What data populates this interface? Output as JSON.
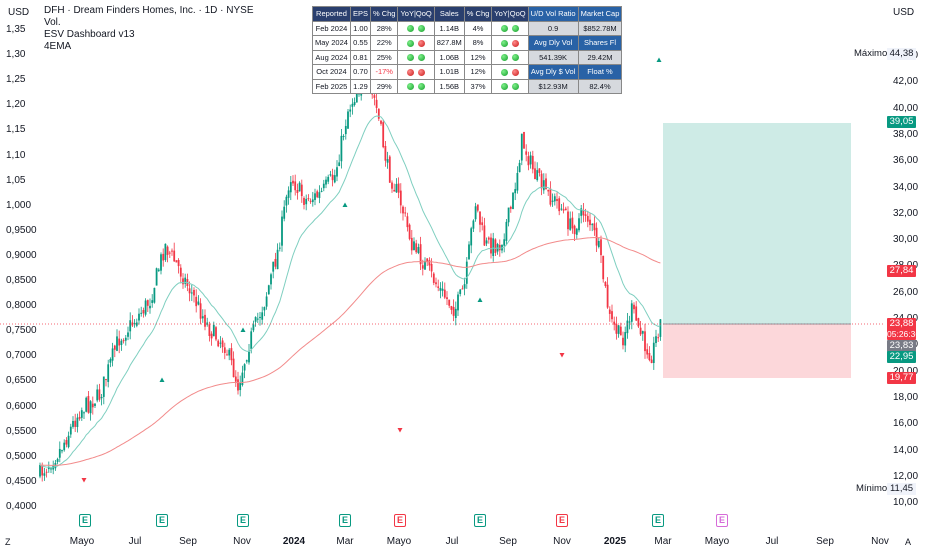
{
  "legend": {
    "title": "DFH · Dream Finders Homes, Inc. · 1D · NYSE",
    "line2": "Vol.",
    "line3": "ESV Dashboard v13",
    "line4": "4EMA"
  },
  "left_axis": {
    "unit": "USD",
    "ticks": [
      "1,35",
      "1,30",
      "1,25",
      "1,20",
      "1,15",
      "1,10",
      "1,05",
      "1,000",
      "0,9500",
      "0,9000",
      "0,8500",
      "0,8000",
      "0,7500",
      "0,7000",
      "0,6500",
      "0,6000",
      "0,5500",
      "0,5000",
      "0,4500",
      "0,4000"
    ]
  },
  "right_axis": {
    "unit": "USD",
    "ticks": [
      "44,00",
      "42,00",
      "40,00",
      "38,00",
      "36,00",
      "34,00",
      "32,00",
      "30,00",
      "28,00",
      "26,00",
      "24,00",
      "22,00",
      "20,00",
      "18,00",
      "16,00",
      "14,00",
      "12,00",
      "10,00"
    ],
    "max_label": "Máximo",
    "max_value": "44,38",
    "min_label": "Mínimo",
    "min_value": "11,45",
    "tags": {
      "target": "39,05",
      "ema": "27,84",
      "last": "23,88",
      "countdown": "05:26:36",
      "prev": "23,83",
      "entry": "22,95",
      "stop": "19,77"
    },
    "colors": {
      "green": "#089981",
      "red": "#f23645",
      "grey": "#787b86"
    }
  },
  "time_axis": {
    "labels": [
      {
        "t": "Mayo",
        "bold": false
      },
      {
        "t": "Jul",
        "bold": false
      },
      {
        "t": "Sep",
        "bold": false
      },
      {
        "t": "Nov",
        "bold": false
      },
      {
        "t": "2024",
        "bold": true
      },
      {
        "t": "Mar",
        "bold": false
      },
      {
        "t": "Mayo",
        "bold": false
      },
      {
        "t": "Jul",
        "bold": false
      },
      {
        "t": "Sep",
        "bold": false
      },
      {
        "t": "Nov",
        "bold": false
      },
      {
        "t": "2025",
        "bold": true
      },
      {
        "t": "Mar",
        "bold": false
      },
      {
        "t": "Mayo",
        "bold": false
      },
      {
        "t": "Jul",
        "bold": false
      },
      {
        "t": "Sep",
        "bold": false
      },
      {
        "t": "Nov",
        "bold": false
      }
    ],
    "left_corner": "Z",
    "right_corner": "A"
  },
  "earnings_markers": [
    {
      "letter": "E",
      "kind": "green"
    },
    {
      "letter": "E",
      "kind": "green"
    },
    {
      "letter": "E",
      "kind": "green"
    },
    {
      "letter": "E",
      "kind": "green"
    },
    {
      "letter": "E",
      "kind": "red"
    },
    {
      "letter": "E",
      "kind": "green"
    },
    {
      "letter": "E",
      "kind": "red"
    },
    {
      "letter": "E",
      "kind": "green"
    },
    {
      "letter": "E",
      "kind": "purple"
    }
  ],
  "dashboard": {
    "headers": [
      "Reported",
      "EPS",
      "% Chg",
      "YoY|QoQ",
      "Sales",
      "% Chg",
      "YoY|QoQ"
    ],
    "rows": [
      {
        "reported": "Feb 2024",
        "eps": "1.00",
        "eps_chg": "28%",
        "eps_dots": [
          "green",
          "green"
        ],
        "sales": "1.14B",
        "sales_chg": "4%",
        "sales_dots": [
          "green",
          "green"
        ]
      },
      {
        "reported": "May 2024",
        "eps": "0.55",
        "eps_chg": "22%",
        "eps_dots": [
          "green",
          "red"
        ],
        "sales": "827.8M",
        "sales_chg": "8%",
        "sales_dots": [
          "green",
          "red"
        ]
      },
      {
        "reported": "Aug 2024",
        "eps": "0.81",
        "eps_chg": "25%",
        "eps_dots": [
          "green",
          "green"
        ],
        "sales": "1.06B",
        "sales_chg": "12%",
        "sales_dots": [
          "green",
          "green"
        ]
      },
      {
        "reported": "Oct 2024",
        "eps": "0.70",
        "eps_chg": "-17%",
        "eps_dots": [
          "red",
          "red"
        ],
        "sales": "1.01B",
        "sales_chg": "12%",
        "sales_dots": [
          "green",
          "red"
        ]
      },
      {
        "reported": "Feb 2025",
        "eps": "1.29",
        "eps_chg": "29%",
        "eps_dots": [
          "green",
          "green"
        ],
        "sales": "1.56B",
        "sales_chg": "37%",
        "sales_dots": [
          "green",
          "green"
        ]
      }
    ],
    "side": {
      "h1": "U/D Vol Ratio",
      "h2": "Market Cap",
      "v1": "0.9",
      "v2": "$852.78M",
      "h3": "Avg Dly Vol",
      "h4": "Shares Fl",
      "v3": "541.39K",
      "v4": "29.42M",
      "h5": "Avg Dly $ Vol",
      "h6": "Float %",
      "v5": "$12.93M",
      "v6": "82.4%"
    }
  }
}
